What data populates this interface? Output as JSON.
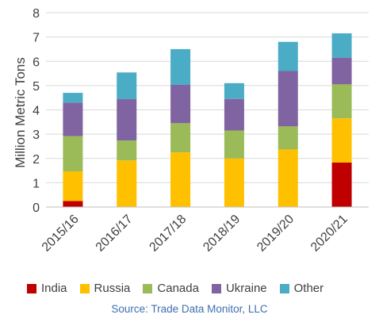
{
  "chart_data": {
    "type": "bar",
    "stacked": true,
    "categories": [
      "2015/16",
      "2016/17",
      "2017/18",
      "2018/19",
      "2019/20",
      "2020/21"
    ],
    "series": [
      {
        "name": "India",
        "color": "#c00000",
        "values": [
          0.25,
          0,
          0,
          0,
          0,
          1.83
        ]
      },
      {
        "name": "Russia",
        "color": "#ffc000",
        "values": [
          1.22,
          1.92,
          2.25,
          2.0,
          2.37,
          1.82
        ]
      },
      {
        "name": "Canada",
        "color": "#9bbb59",
        "values": [
          1.45,
          0.82,
          1.2,
          1.15,
          0.95,
          1.4
        ]
      },
      {
        "name": "Ukraine",
        "color": "#8064a2",
        "values": [
          1.38,
          1.7,
          1.58,
          1.3,
          2.28,
          1.1
        ]
      },
      {
        "name": "Other",
        "color": "#4bacc6",
        "values": [
          0.4,
          1.1,
          1.47,
          0.65,
          1.2,
          1.0
        ]
      }
    ],
    "ylabel": "Million Metric Tons",
    "xlabel": "",
    "ylim": [
      0,
      8
    ],
    "yticks": [
      "0",
      "1",
      "2",
      "3",
      "4",
      "5",
      "6",
      "7",
      "8"
    ],
    "grid": true,
    "legend": "bottom"
  },
  "source_text": "Source: Trade Data Monitor, LLC"
}
